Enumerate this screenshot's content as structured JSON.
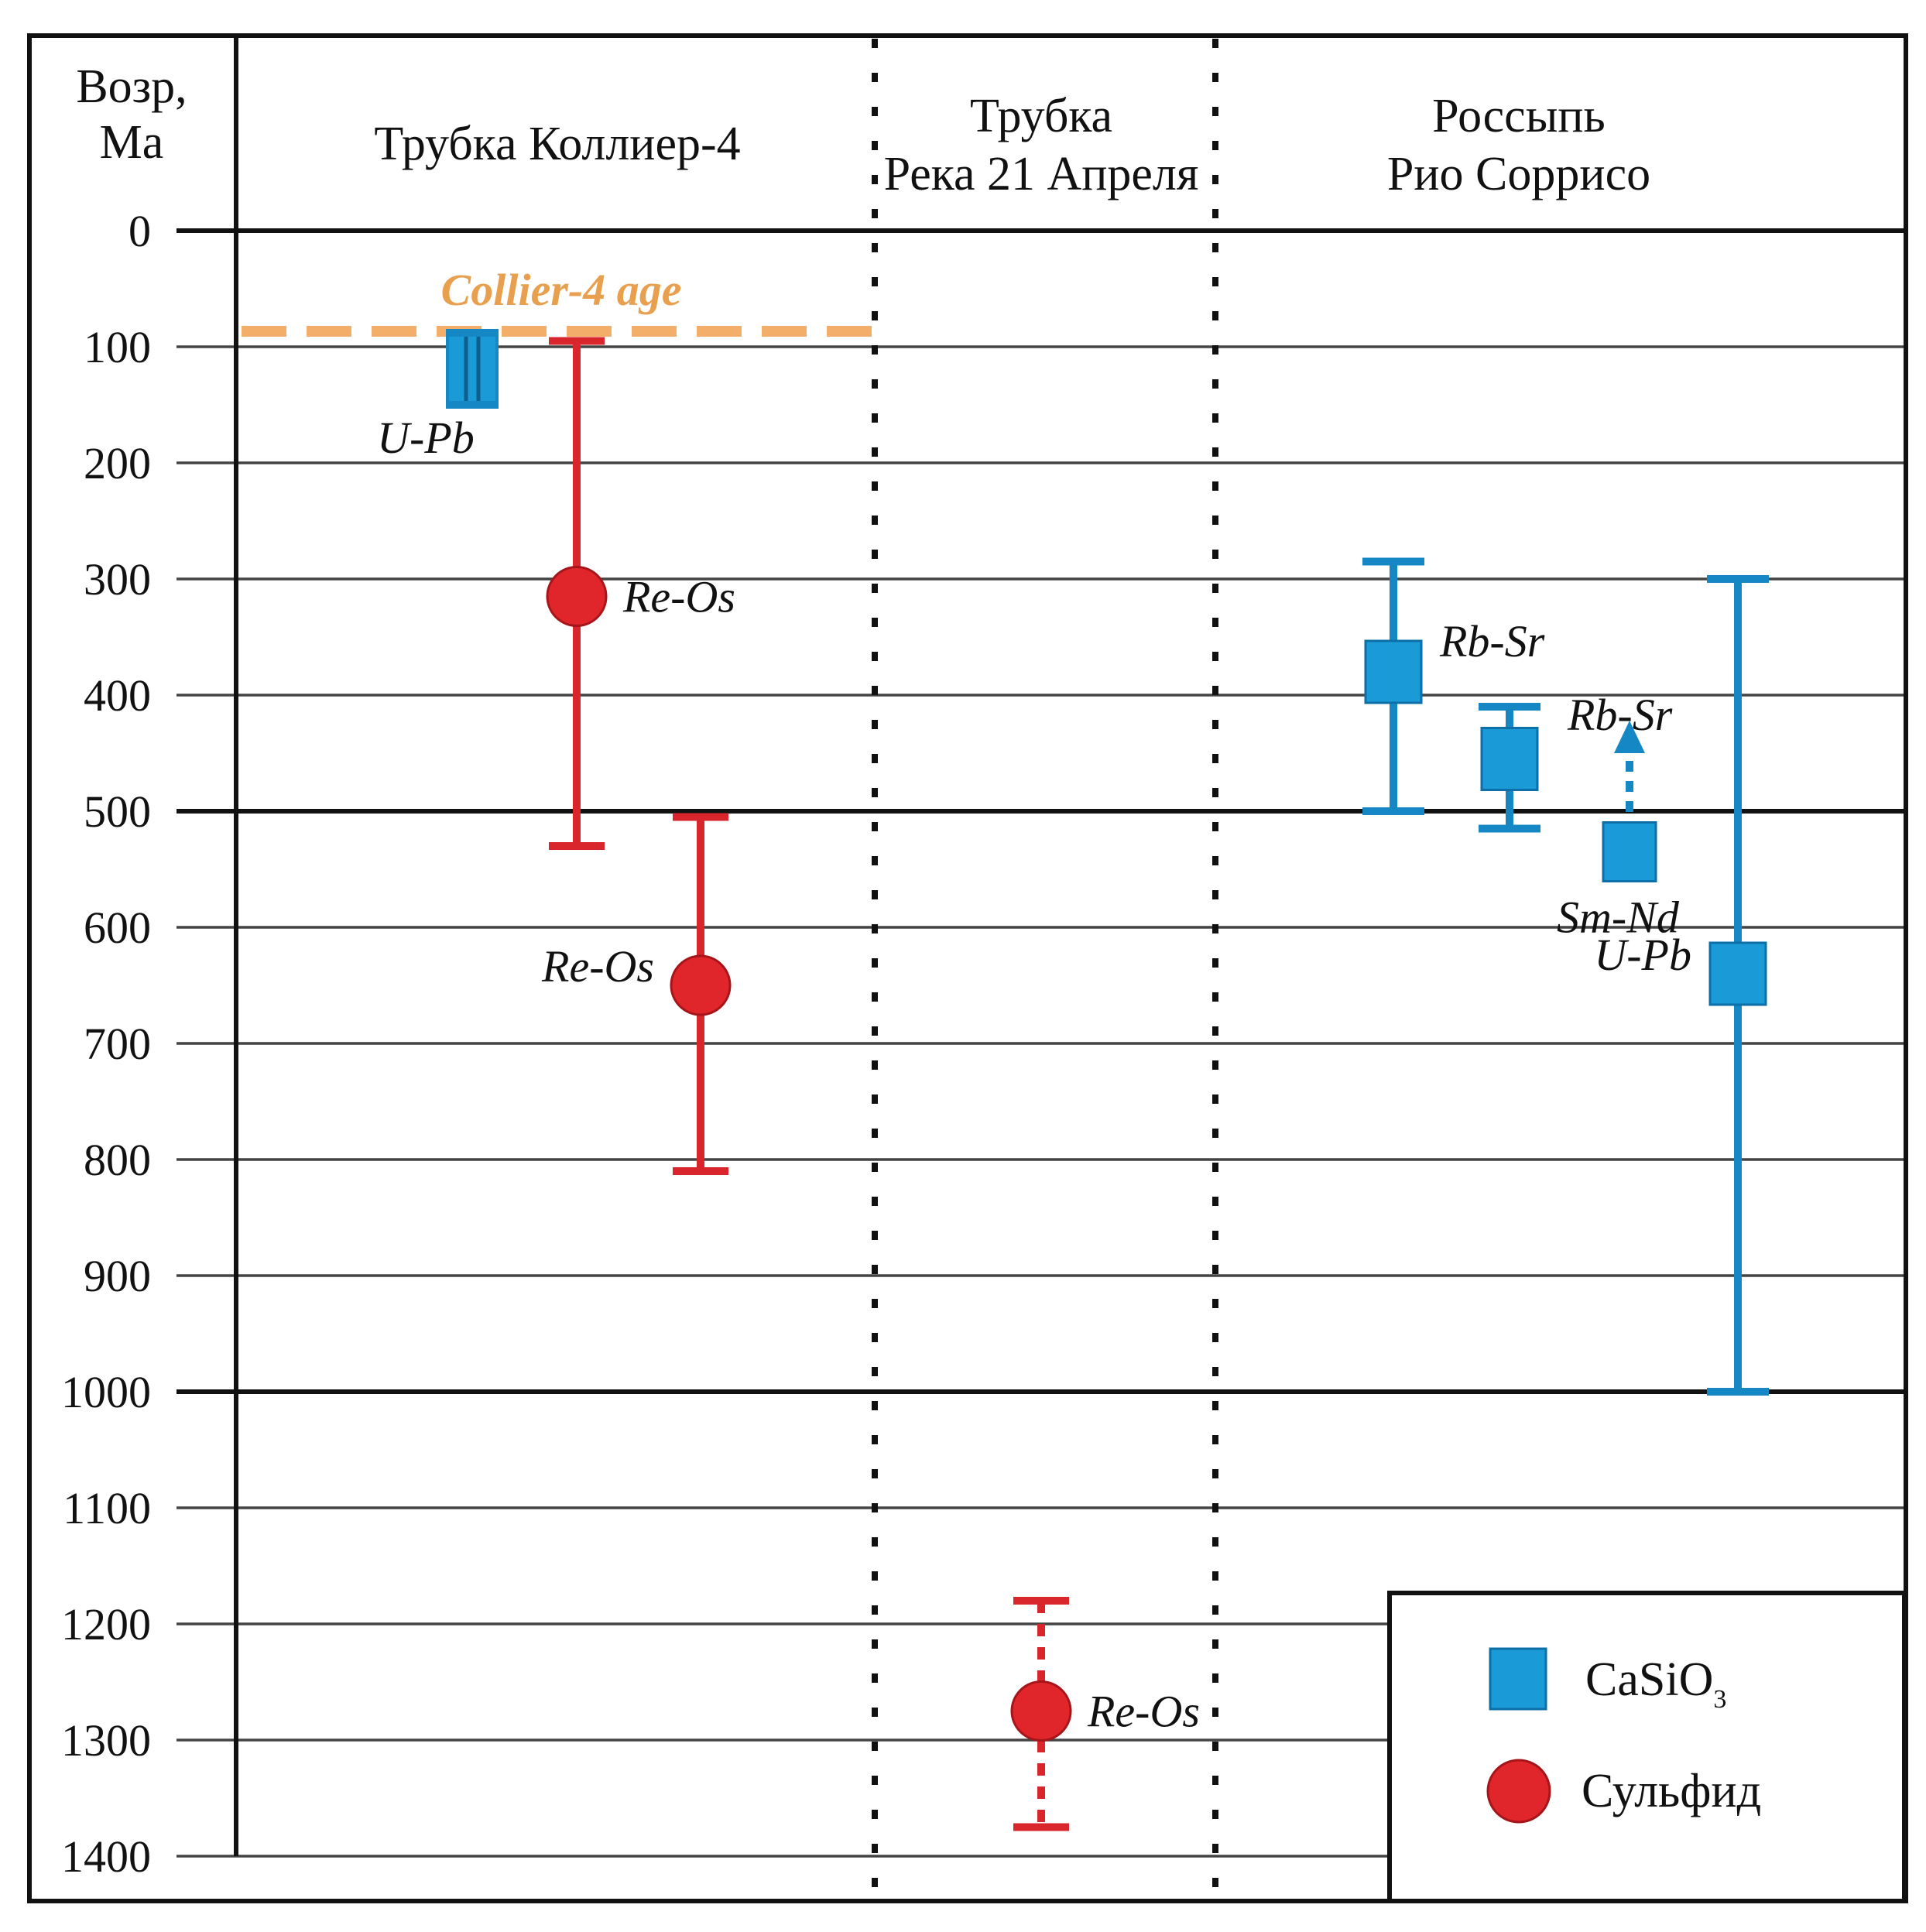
{
  "chart_data": {
    "type": "scatter",
    "y_axis": {
      "label_line1": "Возр,",
      "label_line2": "Ма",
      "ylim": [
        0,
        1400
      ],
      "ticks": [
        0,
        100,
        200,
        300,
        400,
        500,
        600,
        700,
        800,
        900,
        1000,
        1100,
        1200,
        1300,
        1400
      ],
      "inverted": true
    },
    "columns": [
      {
        "id": "collier",
        "line1": "Трубка Коллиер-4",
        "line2": ""
      },
      {
        "id": "reka",
        "line1": "Трубка",
        "line2": "Река 21 Апреля"
      },
      {
        "id": "rio",
        "line1": "Россыпь",
        "line2": "Рио Соррисо"
      }
    ],
    "reference_line": {
      "label": "Collier-4 age",
      "value": 88,
      "color": "#f2a65a"
    },
    "points": [
      {
        "column": "collier",
        "method": "U-Pb",
        "mineral": "CaSiO3",
        "value": 120,
        "min": 88,
        "max": 150,
        "label": "U-Pb",
        "label_side": "below-left",
        "style": "solid"
      },
      {
        "column": "collier",
        "method": "Re-Os",
        "mineral": "sulfide",
        "value": 315,
        "min": 95,
        "max": 530,
        "label": "Re-Os",
        "label_side": "right",
        "style": "solid"
      },
      {
        "column": "collier",
        "method": "Re-Os",
        "mineral": "sulfide",
        "value": 650,
        "min": 505,
        "max": 810,
        "label": "Re-Os",
        "label_side": "left",
        "style": "solid"
      },
      {
        "column": "reka",
        "method": "Re-Os",
        "mineral": "sulfide",
        "value": 1275,
        "min": 1180,
        "max": 1375,
        "label": "Re-Os",
        "label_side": "right",
        "style": "dotted"
      },
      {
        "column": "rio",
        "method": "Rb-Sr",
        "mineral": "CaSiO3",
        "value": 380,
        "min": 285,
        "max": 500,
        "label": "Rb-Sr",
        "label_side": "right",
        "style": "solid"
      },
      {
        "column": "rio",
        "method": "Rb-Sr",
        "mineral": "CaSiO3",
        "value": 455,
        "min": 410,
        "max": 515,
        "label": "Rb-Sr",
        "label_side": "above-right",
        "style": "solid"
      },
      {
        "column": "rio",
        "method": "Sm-Nd",
        "mineral": "CaSiO3",
        "value": 535,
        "min": 430,
        "max": null,
        "label": "Sm-Nd",
        "label_side": "below",
        "style": "dotted-arrow"
      },
      {
        "column": "rio",
        "method": "U-Pb",
        "mineral": "CaSiO3",
        "value": 640,
        "min": 300,
        "max": 1000,
        "label": "U-Pb",
        "label_side": "left",
        "style": "solid"
      }
    ],
    "legend": {
      "position": "bottom-right",
      "entries": [
        {
          "marker": "square",
          "color": "#1a9ad6",
          "label": "CaSiO",
          "sub": "3"
        },
        {
          "marker": "circle",
          "color": "#e0252b",
          "label": "Сульфид",
          "sub": ""
        }
      ]
    },
    "colors": {
      "casio3": "#1a9ad6",
      "casio3_bar": "#1487c4",
      "sulfide": "#e0252b",
      "sulfide_bar": "#d9262c"
    }
  }
}
